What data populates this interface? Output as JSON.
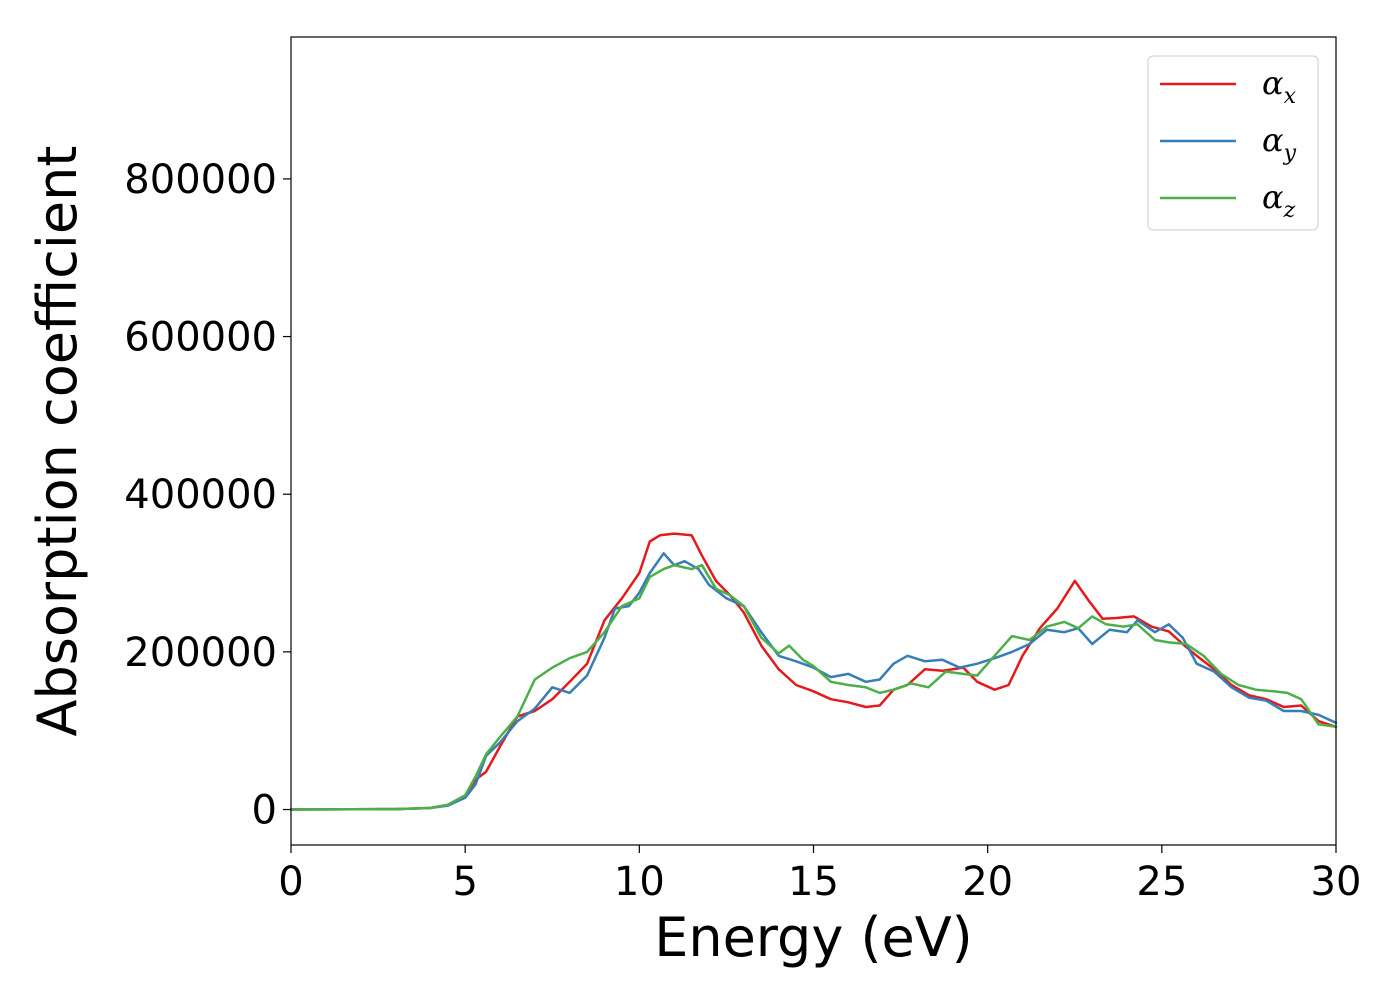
{
  "chart_data": {
    "type": "line",
    "xlabel": "Energy (eV)",
    "ylabel": "Absorption coefficient",
    "xlim": [
      0,
      30
    ],
    "ylim": [
      -45000,
      980000
    ],
    "xticks": [
      0,
      5,
      10,
      15,
      20,
      25,
      30
    ],
    "yticks": [
      0,
      200000,
      400000,
      600000,
      800000
    ],
    "xtick_labels": [
      "0",
      "5",
      "10",
      "15",
      "20",
      "25",
      "30"
    ],
    "ytick_labels": [
      "0",
      "200000",
      "400000",
      "600000",
      "800000"
    ],
    "grid": false,
    "legend_position": "top-right",
    "series": [
      {
        "name": "α_x",
        "symbol": "α",
        "subscript": "x",
        "color": "#e41a1c",
        "x": [
          0,
          3,
          4,
          4.5,
          5,
          5.3,
          5.6,
          6,
          6.5,
          7,
          7.5,
          8,
          8.5,
          9,
          9.5,
          10,
          10.3,
          10.6,
          11,
          11.5,
          11.8,
          12.2,
          12.6,
          13,
          13.5,
          14,
          14.5,
          15,
          15.5,
          16,
          16.5,
          16.9,
          17.3,
          17.7,
          18.2,
          18.7,
          19.3,
          19.7,
          20.2,
          20.6,
          21,
          21.5,
          22,
          22.5,
          22.9,
          23.3,
          23.7,
          24.2,
          24.7,
          25.2,
          25.6,
          26,
          26.5,
          27,
          27.5,
          28,
          28.5,
          29,
          29.5,
          30
        ],
        "y": [
          0,
          500,
          2000,
          6000,
          18000,
          38000,
          48000,
          80000,
          118000,
          125000,
          140000,
          162000,
          185000,
          240000,
          268000,
          300000,
          340000,
          348000,
          350000,
          348000,
          322000,
          290000,
          272000,
          250000,
          208000,
          178000,
          158000,
          150000,
          140000,
          136000,
          130000,
          132000,
          152000,
          158000,
          178000,
          176000,
          180000,
          162000,
          152000,
          158000,
          195000,
          230000,
          255000,
          290000,
          265000,
          242000,
          243000,
          245000,
          232000,
          226000,
          210000,
          195000,
          178000,
          158000,
          145000,
          140000,
          130000,
          132000,
          112000,
          105000
        ]
      },
      {
        "name": "α_y",
        "symbol": "α",
        "subscript": "y",
        "color": "#377eb8",
        "x": [
          0,
          3,
          4,
          4.5,
          5,
          5.3,
          5.6,
          6,
          6.5,
          7,
          7.5,
          8,
          8.5,
          9,
          9.3,
          9.7,
          10,
          10.3,
          10.7,
          11,
          11.3,
          11.7,
          12,
          12.5,
          13,
          13.5,
          14,
          14.5,
          15,
          15.5,
          16,
          16.5,
          16.9,
          17.3,
          17.7,
          18.2,
          18.7,
          19.2,
          19.7,
          20.2,
          20.7,
          21.2,
          21.7,
          22.2,
          22.6,
          23,
          23.5,
          24,
          24.3,
          24.8,
          25.2,
          25.6,
          26,
          26.5,
          27,
          27.5,
          28,
          28.5,
          29,
          29.5,
          30
        ],
        "y": [
          0,
          500,
          2000,
          5000,
          15000,
          32000,
          68000,
          85000,
          112000,
          128000,
          155000,
          148000,
          170000,
          218000,
          255000,
          258000,
          275000,
          300000,
          325000,
          310000,
          315000,
          305000,
          285000,
          268000,
          258000,
          225000,
          195000,
          188000,
          180000,
          168000,
          172000,
          162000,
          165000,
          185000,
          195000,
          188000,
          190000,
          180000,
          185000,
          192000,
          200000,
          210000,
          228000,
          225000,
          230000,
          210000,
          228000,
          225000,
          240000,
          225000,
          235000,
          218000,
          185000,
          175000,
          155000,
          142000,
          138000,
          125000,
          125000,
          120000,
          110000
        ]
      },
      {
        "name": "α_z",
        "symbol": "α",
        "subscript": "z",
        "color": "#4daf4a",
        "x": [
          0,
          3,
          4,
          4.5,
          5,
          5.3,
          5.6,
          6,
          6.5,
          7,
          7.5,
          8,
          8.5,
          9,
          9.5,
          10,
          10.3,
          10.7,
          11,
          11.5,
          11.8,
          12.2,
          12.6,
          13,
          13.5,
          14,
          14.3,
          14.7,
          15,
          15.5,
          16,
          16.5,
          16.9,
          17.3,
          17.8,
          18.3,
          18.8,
          19.3,
          19.7,
          20.2,
          20.7,
          21.2,
          21.7,
          22.2,
          22.6,
          23,
          23.4,
          23.9,
          24.3,
          24.8,
          25.2,
          25.7,
          26.2,
          26.7,
          27.2,
          27.7,
          28.2,
          28.6,
          29,
          29.5,
          30
        ],
        "y": [
          0,
          500,
          2000,
          6000,
          18000,
          42000,
          70000,
          92000,
          118000,
          165000,
          180000,
          192000,
          200000,
          225000,
          258000,
          268000,
          295000,
          305000,
          310000,
          305000,
          310000,
          280000,
          272000,
          258000,
          218000,
          198000,
          208000,
          190000,
          182000,
          162000,
          158000,
          155000,
          148000,
          152000,
          160000,
          155000,
          175000,
          172000,
          170000,
          195000,
          220000,
          215000,
          232000,
          238000,
          230000,
          245000,
          235000,
          232000,
          235000,
          215000,
          212000,
          210000,
          195000,
          172000,
          158000,
          152000,
          150000,
          148000,
          140000,
          108000,
          105000
        ]
      }
    ]
  }
}
